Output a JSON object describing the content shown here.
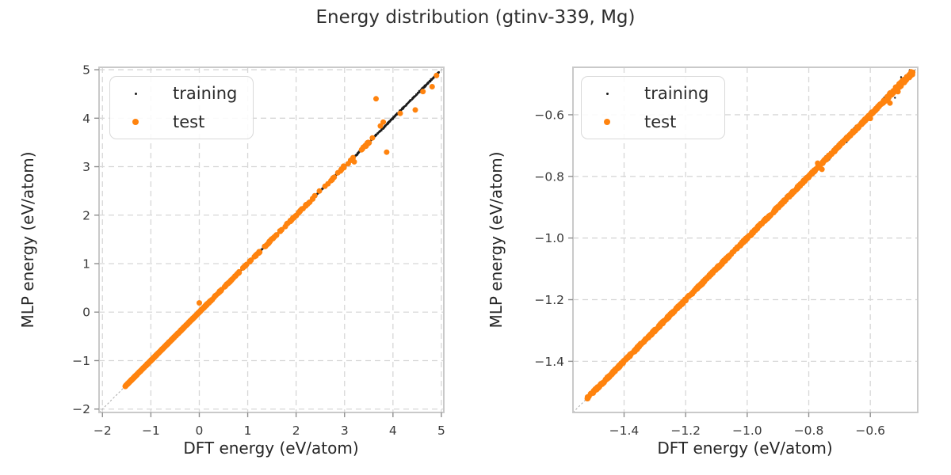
{
  "figure": {
    "title": "Energy distribution (gtinv-339, Mg)"
  },
  "colors": {
    "training": "#1c1c1c",
    "test": "#ff830e",
    "grid": "#d7d7d7",
    "spine": "#c9c9c9",
    "identity_line": "#ababab",
    "tick_mark": "#8f8f8f",
    "tick_label": "#3a3a3a",
    "axis_label": "#262626",
    "background": "#ffffff"
  },
  "legend": {
    "position": "upper left",
    "items": [
      {
        "label": "training",
        "marker": "small-black-dot",
        "color_key": "training"
      },
      {
        "label": "test",
        "marker": "orange-dot",
        "color_key": "test"
      }
    ]
  },
  "chart_data": [
    {
      "type": "scatter",
      "xlabel": "DFT energy (eV/atom)",
      "ylabel": "MLP energy (eV/atom)",
      "xlim": [
        -2.07,
        5.05
      ],
      "ylim": [
        -2.07,
        5.05
      ],
      "xticks": {
        "values": [
          -2,
          -1,
          0,
          1,
          2,
          3,
          4,
          5
        ],
        "labels": [
          "−2",
          "−1",
          "0",
          "1",
          "2",
          "3",
          "4",
          "5"
        ]
      },
      "yticks": {
        "values": [
          -2,
          -1,
          0,
          1,
          2,
          3,
          4,
          5
        ],
        "labels": [
          "−2",
          "−1",
          "0",
          "1",
          "2",
          "3",
          "4",
          "5"
        ]
      },
      "grid": true,
      "identity_line": true,
      "series": [
        {
          "name": "training",
          "color": "#1c1c1c",
          "marker_radius": 1.2,
          "diagonal_segments": [
            {
              "from": -1.52,
              "to": 4.95,
              "count": 1200,
              "jitter": 0.008
            },
            {
              "from": 2.55,
              "to": 4.95,
              "count": 260,
              "jitter": 0.02
            },
            {
              "from": 0.3,
              "to": 2.6,
              "count": 200,
              "jitter": 0.012
            }
          ],
          "points": []
        },
        {
          "name": "test",
          "color": "#ff830e",
          "marker_radius": 3.5,
          "diagonal_segments": [
            {
              "from": -1.53,
              "to": 0.15,
              "count": 700,
              "jitter": 0.006
            },
            {
              "from": 0.15,
              "to": 2.35,
              "count": 130,
              "jitter": 0.012
            },
            {
              "from": 2.35,
              "to": 3.58,
              "count": 30,
              "jitter": 0.018
            }
          ],
          "points": [
            [
              0.0,
              0.19
            ],
            [
              3.65,
              4.4
            ],
            [
              3.74,
              3.84
            ],
            [
              3.8,
              3.92
            ],
            [
              3.87,
              3.3
            ],
            [
              4.15,
              4.1
            ],
            [
              4.46,
              4.17
            ],
            [
              4.62,
              4.55
            ],
            [
              4.81,
              4.65
            ],
            [
              4.9,
              4.88
            ],
            [
              3.47,
              3.49
            ],
            [
              3.2,
              3.1
            ],
            [
              2.98,
              3.01
            ],
            [
              2.72,
              2.71
            ]
          ]
        }
      ]
    },
    {
      "type": "scatter",
      "xlabel": "DFT energy (eV/atom)",
      "ylabel": "MLP energy (eV/atom)",
      "xlim": [
        -1.566,
        -0.446
      ],
      "ylim": [
        -1.566,
        -0.446
      ],
      "xticks": {
        "values": [
          -1.4,
          -1.2,
          -1.0,
          -0.8,
          -0.6
        ],
        "labels": [
          "−1.4",
          "−1.2",
          "−1.0",
          "−0.8",
          "−0.6"
        ]
      },
      "yticks": {
        "values": [
          -1.4,
          -1.2,
          -1.0,
          -0.8,
          -0.6
        ],
        "labels": [
          "−1.4",
          "−1.2",
          "−1.0",
          "−0.8",
          "−0.6"
        ]
      },
      "grid": true,
      "identity_line": true,
      "series": [
        {
          "name": "training",
          "color": "#1c1c1c",
          "marker_radius": 1.2,
          "diagonal_segments": [
            {
              "from": -1.52,
              "to": -0.465,
              "count": 1100,
              "jitter": 0.0035
            },
            {
              "from": -0.88,
              "to": -0.455,
              "count": 150,
              "jitter": 0.012
            },
            {
              "from": -0.68,
              "to": -0.58,
              "count": 60,
              "jitter": 0.008
            }
          ],
          "points": [
            [
              -0.5,
              -0.478
            ],
            [
              -0.472,
              -0.455
            ],
            [
              -0.52,
              -0.545
            ]
          ]
        },
        {
          "name": "test",
          "color": "#ff830e",
          "marker_radius": 3.5,
          "diagonal_segments": [
            {
              "from": -1.52,
              "to": -0.55,
              "count": 850,
              "jitter": 0.0035
            },
            {
              "from": -0.55,
              "to": -0.462,
              "count": 70,
              "jitter": 0.007
            }
          ],
          "points": [
            [
              -0.536,
              -0.562
            ],
            [
              -0.771,
              -0.757
            ],
            [
              -0.757,
              -0.777
            ],
            [
              -0.6,
              -0.612
            ],
            [
              -0.51,
              -0.525
            ]
          ]
        }
      ]
    }
  ]
}
